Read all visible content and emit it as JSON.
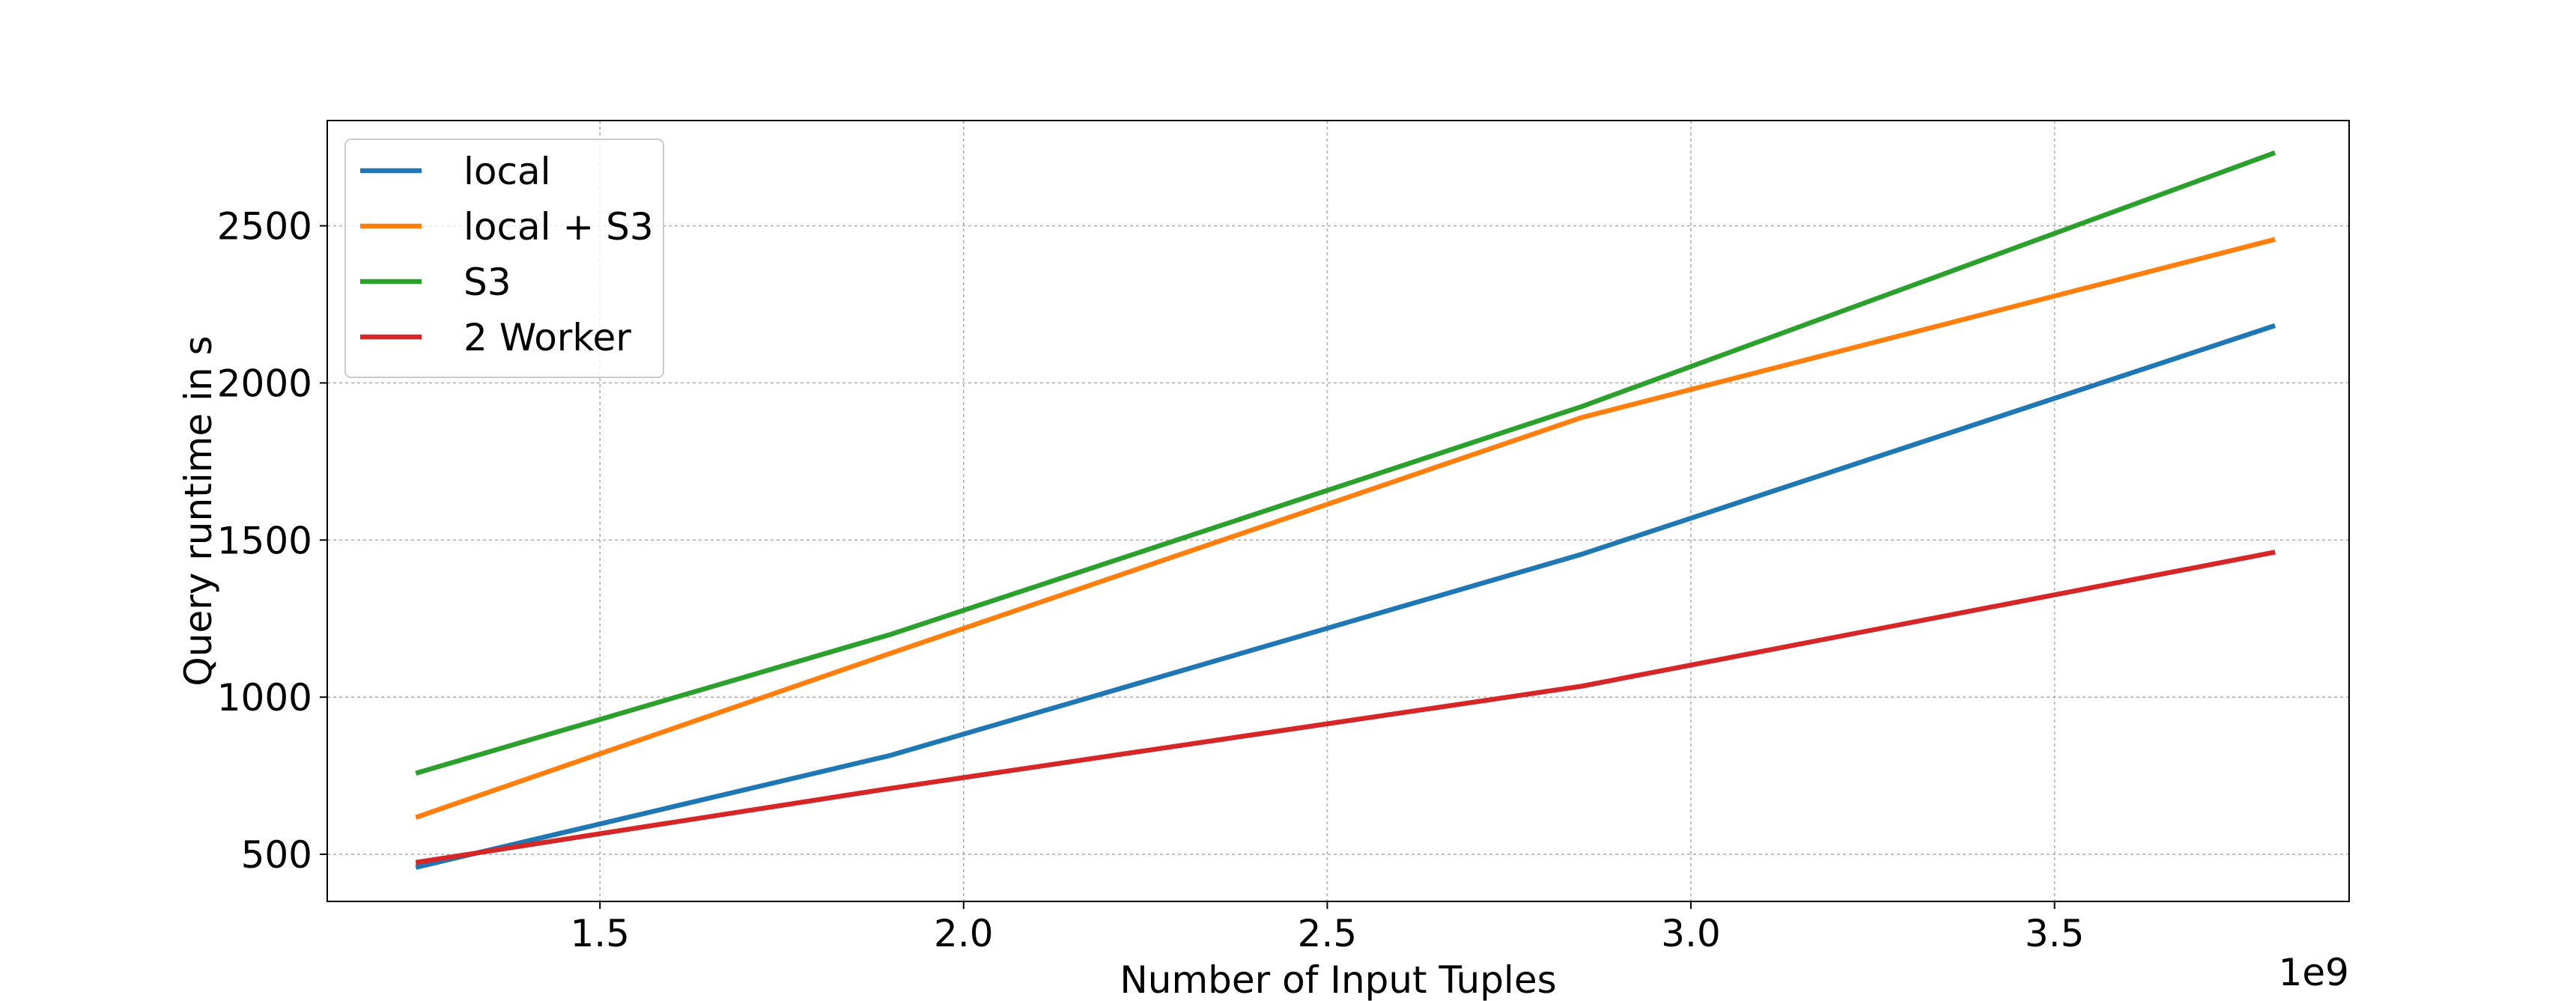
{
  "chart_data": {
    "type": "line",
    "title": "",
    "xlabel": "Number of Input Tuples",
    "ylabel": "Query runtime in s",
    "x_offset_label": "1e9",
    "xlim": [
      1.125,
      3.905
    ],
    "ylim": [
      350,
      2835
    ],
    "x_ticks": [
      1.5,
      2.0,
      2.5,
      3.0,
      3.5
    ],
    "x_tick_labels": [
      "1.5",
      "2.0",
      "2.5",
      "3.0",
      "3.5"
    ],
    "y_ticks": [
      500,
      1000,
      1500,
      2000,
      2500
    ],
    "y_tick_labels": [
      "500",
      "1000",
      "1500",
      "2000",
      "2500"
    ],
    "grid": true,
    "legend_position": "upper-left",
    "x": [
      1.25,
      1.9,
      2.85,
      3.8
    ],
    "series": [
      {
        "name": "local",
        "color": "#1f77b4",
        "values": [
          460,
          815,
          1455,
          2180
        ]
      },
      {
        "name": "local + S3",
        "color": "#ff7f0e",
        "values": [
          620,
          1140,
          1890,
          2455
        ]
      },
      {
        "name": "S3",
        "color": "#2ca02c",
        "values": [
          760,
          1200,
          1925,
          2730
        ]
      },
      {
        "name": "2 Worker",
        "color": "#d62728",
        "values": [
          475,
          710,
          1035,
          1460
        ]
      }
    ]
  }
}
